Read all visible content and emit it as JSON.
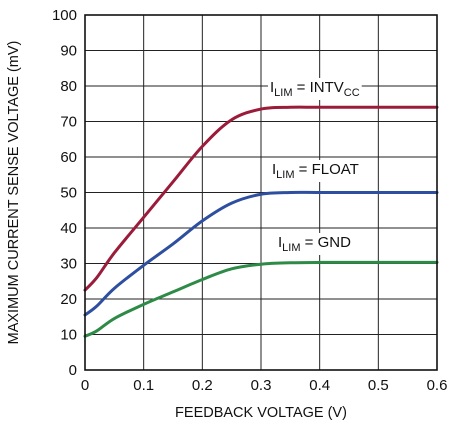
{
  "chart_data": {
    "type": "line",
    "title": "",
    "xlabel": "FEEDBACK VOLTAGE (V)",
    "ylabel": "MAXIMUM CURRENT SENSE VOLTAGE (mV)",
    "xlim": [
      0,
      0.6
    ],
    "ylim": [
      0,
      100
    ],
    "xticks": [
      "0",
      "0.1",
      "0.2",
      "0.3",
      "0.4",
      "0.5",
      "0.6"
    ],
    "yticks": [
      "0",
      "10",
      "20",
      "30",
      "40",
      "50",
      "60",
      "70",
      "80",
      "90",
      "100"
    ],
    "grid": true,
    "series": [
      {
        "label_main": "I",
        "label_sub": "LIM",
        "label_rest": " = INTV",
        "label_sub2": "CC",
        "color": "#9b1b3a",
        "x": [
          0,
          0.02,
          0.05,
          0.1,
          0.15,
          0.2,
          0.25,
          0.3,
          0.35,
          0.4,
          0.5,
          0.6
        ],
        "y": [
          22.5,
          26,
          33,
          43,
          53,
          63,
          70.5,
          73.5,
          74,
          74,
          74,
          74
        ]
      },
      {
        "label_main": "I",
        "label_sub": "LIM",
        "label_rest": " = FLOAT",
        "label_sub2": "",
        "color": "#2e4fa0",
        "x": [
          0,
          0.02,
          0.05,
          0.1,
          0.15,
          0.2,
          0.25,
          0.3,
          0.35,
          0.4,
          0.5,
          0.6
        ],
        "y": [
          15.5,
          18,
          23,
          29.5,
          35.5,
          42,
          47,
          49.5,
          50,
          50,
          50,
          50
        ]
      },
      {
        "label_main": "I",
        "label_sub": "LIM",
        "label_rest": " = GND",
        "label_sub2": "",
        "color": "#2e8b47",
        "x": [
          0,
          0.02,
          0.05,
          0.1,
          0.15,
          0.2,
          0.25,
          0.3,
          0.35,
          0.4,
          0.5,
          0.6
        ],
        "y": [
          9.5,
          11,
          14.5,
          18.5,
          22,
          25.5,
          28.5,
          29.8,
          30.2,
          30.3,
          30.3,
          30.3
        ]
      }
    ]
  }
}
